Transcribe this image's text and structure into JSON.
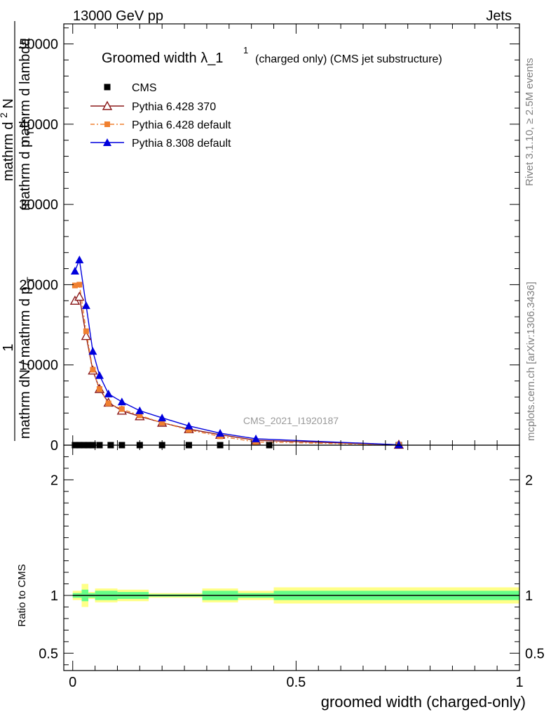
{
  "header": {
    "left": "13000 GeV pp",
    "right": "Jets"
  },
  "side": {
    "rivet": "Rivet 3.1.10, ≥ 2.5M events",
    "mcplots": "mcplots.cern.ch [arXiv:1306.3436]"
  },
  "colors": {
    "cms": "#000000",
    "pythia6_370": "#8b1a1a",
    "pythia6_default": "#f08030",
    "pythia8": "#0000dd",
    "band_yellow": "#ffff88",
    "band_green": "#66ff88"
  },
  "chart_data": [
    {
      "type": "line",
      "title": "Groomed width",
      "title_symbol": "λ_1",
      "title_sup": "1",
      "title_suffix": "(charged only) (CMS jet substructure)",
      "watermark": "CMS_2021_I1920187",
      "ylabel": {
        "numerator_one": "1",
        "denominator": "mathrm dN / mathrm d p",
        "denominator_sub": "T",
        "denominator_tail": "mathrm d p",
        "denominator_tail_sub": "T",
        "numerator": "mathrm d",
        "numerator_sup": "2",
        "numerator_tail": "N",
        "numerator_end": "mathrm d lambda"
      },
      "xlim": [
        -0.02,
        1.0
      ],
      "ylim": [
        0,
        52500
      ],
      "yticks": [
        0,
        10000,
        20000,
        30000,
        40000,
        50000
      ],
      "ytick_labels": [
        "0",
        "10000",
        "20000",
        "30000",
        "40000",
        "50000"
      ],
      "legend_position": "top-left",
      "series": [
        {
          "name": "CMS",
          "marker": "square",
          "x": [
            0.005,
            0.015,
            0.025,
            0.035,
            0.045,
            0.06,
            0.085,
            0.11,
            0.15,
            0.2,
            0.26,
            0.33,
            0.44,
            0.73
          ],
          "y": [
            5,
            5,
            5,
            5,
            5,
            5,
            5,
            5,
            5,
            5,
            5,
            5,
            5,
            5
          ]
        },
        {
          "name": "Pythia 6.428 370",
          "marker": "triangle-open",
          "x": [
            0.005,
            0.015,
            0.03,
            0.045,
            0.06,
            0.08,
            0.11,
            0.15,
            0.2,
            0.26,
            0.33,
            0.41,
            0.73
          ],
          "y": [
            18000,
            18500,
            13600,
            9300,
            7000,
            5300,
            4300,
            3600,
            2800,
            2000,
            1300,
            600,
            50
          ]
        },
        {
          "name": "Pythia 6.428 default",
          "marker": "square-small",
          "x": [
            0.005,
            0.015,
            0.03,
            0.045,
            0.06,
            0.08,
            0.11,
            0.15,
            0.2,
            0.26,
            0.33,
            0.41,
            0.73
          ],
          "y": [
            19900,
            20000,
            14200,
            9400,
            7000,
            5200,
            4500,
            3700,
            2800,
            1900,
            1100,
            400,
            30
          ]
        },
        {
          "name": "Pythia 8.308 default",
          "marker": "triangle-filled",
          "x": [
            0.005,
            0.015,
            0.03,
            0.045,
            0.06,
            0.08,
            0.11,
            0.15,
            0.2,
            0.26,
            0.33,
            0.41,
            0.73
          ],
          "y": [
            21700,
            23100,
            17400,
            11700,
            8700,
            6400,
            5400,
            4300,
            3400,
            2400,
            1500,
            800,
            50
          ]
        }
      ]
    },
    {
      "type": "area",
      "ylabel": "Ratio to CMS",
      "xlabel": "groomed width (charged-only)",
      "xlim": [
        -0.02,
        1.0
      ],
      "ylim": [
        0.35,
        2.3
      ],
      "xticks": [
        0,
        0.5,
        1
      ],
      "xtick_labels": [
        "0",
        "0.5",
        "1"
      ],
      "yticks": [
        0.5,
        1,
        2
      ],
      "ytick_labels": [
        "0.5",
        "1",
        "2"
      ],
      "reference_line": 1,
      "bands": {
        "edges": [
          0,
          0.02,
          0.035,
          0.05,
          0.1,
          0.17,
          0.29,
          0.37,
          0.45,
          1.0
        ],
        "yellow_halfwidth": [
          0.04,
          0.1,
          0.03,
          0.06,
          0.05,
          0.02,
          0.06,
          0.04,
          0.07
        ],
        "green_halfwidth": [
          0.02,
          0.05,
          0.02,
          0.04,
          0.03,
          0.01,
          0.04,
          0.02,
          0.04
        ]
      }
    }
  ]
}
